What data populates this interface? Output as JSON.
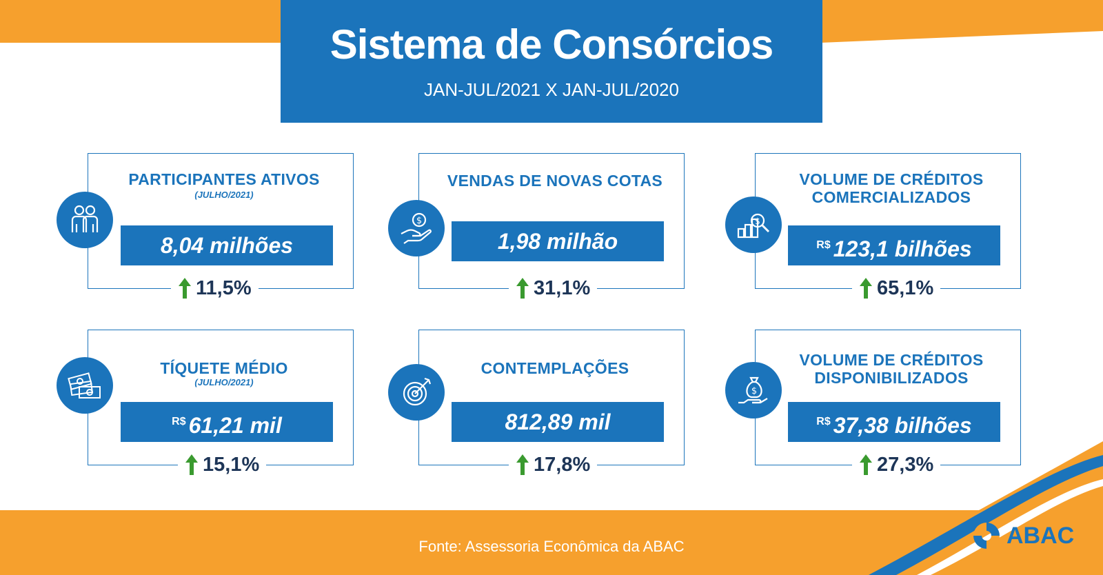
{
  "header": {
    "title": "Sistema de Consórcios",
    "subtitle": "JAN-JUL/2021 X JAN-JUL/2020"
  },
  "colors": {
    "blue": "#1b74bb",
    "orange": "#f6a02d",
    "green": "#3a9a2f",
    "dark_text": "#1d3557"
  },
  "cards": [
    {
      "title": "PARTICIPANTES ATIVOS",
      "subtitle": "(JULHO/2021)",
      "value": "8,04 milhões",
      "currency": "",
      "growth": "11,5%",
      "icon": "people-icon"
    },
    {
      "title": "VENDAS DE NOVAS COTAS",
      "subtitle": "",
      "value": "1,98 milhão",
      "currency": "",
      "growth": "31,1%",
      "icon": "hand-coin-icon"
    },
    {
      "title_line1": "VOLUME DE CRÉDITOS",
      "title_line2": "COMERCIALIZADOS",
      "value": "123,1 bilhões",
      "currency": "R$",
      "growth": "65,1%",
      "icon": "chart-magnifier-icon"
    },
    {
      "title": "TÍQUETE MÉDIO",
      "subtitle": "(JULHO/2021)",
      "value": "61,21 mil",
      "currency": "R$",
      "growth": "15,1%",
      "icon": "money-stack-icon"
    },
    {
      "title": "CONTEMPLAÇÕES",
      "subtitle": "",
      "value": "812,89 mil",
      "currency": "",
      "growth": "17,8%",
      "icon": "target-icon"
    },
    {
      "title_line1": "VOLUME DE CRÉDITOS",
      "title_line2": "DISPONIBILIZADOS",
      "value": "37,38 bilhões",
      "currency": "R$",
      "growth": "27,3%",
      "icon": "money-bag-hand-icon"
    }
  ],
  "footer": {
    "source": "Fonte: Assessoria Econômica da ABAC",
    "logo_text": "ABAC"
  }
}
